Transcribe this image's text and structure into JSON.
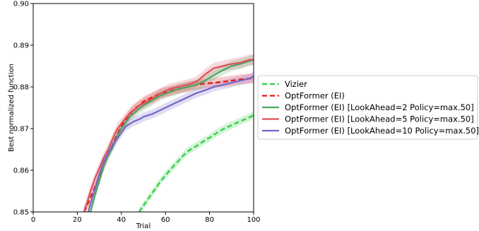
{
  "chart_data": {
    "type": "line",
    "xlabel": "Trial",
    "ylabel": "Best normalized function",
    "xlim": [
      0,
      100
    ],
    "ylim": [
      0.85,
      0.9
    ],
    "x_ticks": [
      0,
      20,
      40,
      60,
      80,
      100
    ],
    "y_ticks": [
      0.85,
      0.86,
      0.87,
      0.88,
      0.89,
      0.9
    ],
    "x_tick_labels": [
      "0",
      "20",
      "40",
      "60",
      "80",
      "100"
    ],
    "y_tick_labels": [
      "0.85",
      "0.86",
      "0.87",
      "0.88",
      "0.89",
      "0.90"
    ],
    "grid": false,
    "legend_position": "outside-right",
    "series": [
      {
        "name": "Vizier",
        "color": "#2ecc40",
        "dash": true,
        "x": [
          48,
          50,
          52,
          54,
          56,
          58,
          60,
          62,
          64,
          66,
          68,
          70,
          72,
          74,
          76,
          78,
          80,
          82,
          84,
          86,
          88,
          90,
          92,
          94,
          96,
          98,
          100
        ],
        "y": [
          0.85,
          0.8515,
          0.853,
          0.8545,
          0.856,
          0.8575,
          0.8588,
          0.86,
          0.8612,
          0.8623,
          0.8635,
          0.8645,
          0.8652,
          0.8658,
          0.8665,
          0.8672,
          0.8678,
          0.8685,
          0.8692,
          0.8698,
          0.8703,
          0.8708,
          0.8713,
          0.8718,
          0.8722,
          0.8727,
          0.8732
        ],
        "band": 0.0009
      },
      {
        "name": "OptFormer (EI)",
        "color": "#ee1111",
        "dash": true,
        "x": [
          23,
          24,
          26,
          28,
          30,
          32,
          34,
          36,
          38,
          40,
          42,
          44,
          46,
          48,
          50,
          54,
          58,
          62,
          66,
          70,
          74,
          78,
          82,
          86,
          90,
          94,
          98,
          100
        ],
        "y": [
          0.85,
          0.851,
          0.8535,
          0.856,
          0.8585,
          0.861,
          0.864,
          0.866,
          0.8685,
          0.8705,
          0.872,
          0.8735,
          0.8748,
          0.8755,
          0.8765,
          0.8775,
          0.8785,
          0.879,
          0.8795,
          0.88,
          0.8805,
          0.8808,
          0.881,
          0.8812,
          0.8815,
          0.8818,
          0.882,
          0.882
        ],
        "band": 0.0012
      },
      {
        "name": "OptFormer (EI) [LookAhead=2 Policy=max.50]",
        "color": "#4aa564",
        "dash": false,
        "x": [
          26,
          28,
          30,
          32,
          34,
          36,
          38,
          40,
          42,
          44,
          46,
          48,
          50,
          54,
          58,
          62,
          66,
          70,
          74,
          78,
          82,
          86,
          90,
          94,
          98,
          100
        ],
        "y": [
          0.85,
          0.854,
          0.8575,
          0.861,
          0.8635,
          0.8655,
          0.868,
          0.87,
          0.8715,
          0.873,
          0.8738,
          0.8748,
          0.8755,
          0.8768,
          0.878,
          0.8788,
          0.8795,
          0.88,
          0.8805,
          0.8815,
          0.8828,
          0.884,
          0.885,
          0.8855,
          0.8862,
          0.8865
        ],
        "band": 0.0012
      },
      {
        "name": "OptFormer (EI) [LookAhead=5 Policy=max.50]",
        "color": "#d9505a",
        "dash": false,
        "x": [
          23,
          24,
          26,
          28,
          30,
          32,
          34,
          36,
          38,
          40,
          42,
          44,
          46,
          48,
          50,
          54,
          58,
          62,
          66,
          70,
          74,
          78,
          82,
          86,
          90,
          94,
          98,
          100
        ],
        "y": [
          0.85,
          0.8515,
          0.855,
          0.858,
          0.8605,
          0.863,
          0.865,
          0.8675,
          0.8698,
          0.8712,
          0.8725,
          0.8738,
          0.8745,
          0.8755,
          0.876,
          0.8772,
          0.8785,
          0.8795,
          0.88,
          0.8805,
          0.8812,
          0.883,
          0.8845,
          0.885,
          0.8855,
          0.8858,
          0.8865,
          0.8865
        ],
        "band": 0.0013
      },
      {
        "name": "OptFormer (EI) [LookAhead=10 Policy=max.50]",
        "color": "#7466c7",
        "dash": false,
        "x": [
          25,
          26,
          28,
          30,
          32,
          34,
          36,
          38,
          40,
          42,
          44,
          46,
          48,
          50,
          54,
          58,
          62,
          66,
          70,
          74,
          78,
          82,
          86,
          90,
          94,
          98,
          100
        ],
        "y": [
          0.85,
          0.852,
          0.8555,
          0.859,
          0.862,
          0.864,
          0.866,
          0.8675,
          0.869,
          0.8705,
          0.8712,
          0.8718,
          0.8722,
          0.8728,
          0.8735,
          0.8745,
          0.8755,
          0.8765,
          0.8775,
          0.8785,
          0.8792,
          0.88,
          0.8805,
          0.881,
          0.8815,
          0.882,
          0.8825
        ],
        "band": 0.0011
      }
    ]
  }
}
